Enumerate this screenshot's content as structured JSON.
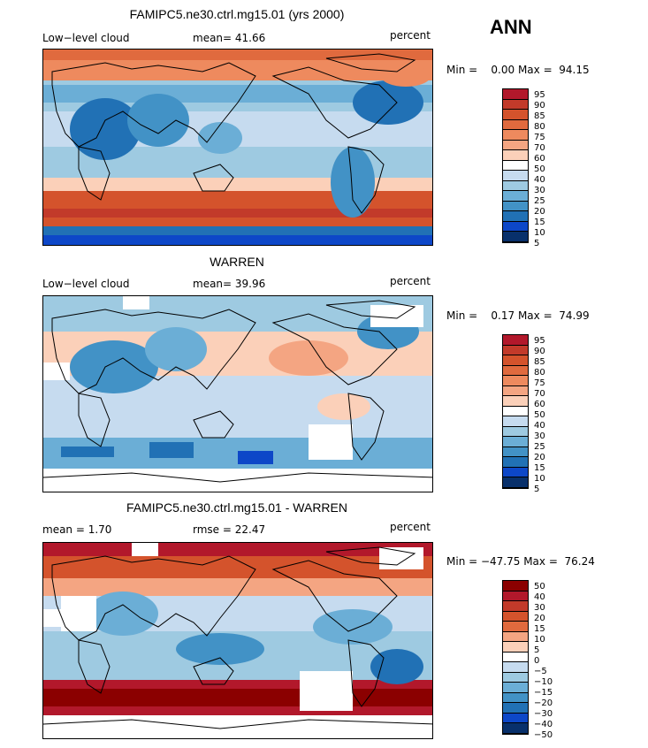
{
  "season": "ANN",
  "panels": [
    {
      "title": "FAMIPC5.ne30.ctrl.mg15.01 (yrs 2000)",
      "left_label": "Low−level cloud",
      "center_label": "mean=  41.66",
      "right_label": "percent",
      "minmax": "Min =    0.00 Max =  94.15",
      "colorbar_levels": [
        "95",
        "90",
        "85",
        "80",
        "75",
        "70",
        "60",
        "50",
        "40",
        "30",
        "25",
        "20",
        "15",
        "10",
        "5"
      ],
      "colors": [
        "#b2182b",
        "#c23a2a",
        "#d4532c",
        "#e06a3e",
        "#ee8a5e",
        "#f4a582",
        "#fbd0b9",
        "#ffffff",
        "#c6dbef",
        "#9ecae1",
        "#6baed6",
        "#4292c6",
        "#2171b5",
        "#0d47c8",
        "#08306b"
      ]
    },
    {
      "title": "WARREN",
      "left_label": "Low−level cloud",
      "center_label": "mean=  39.96",
      "right_label": "percent",
      "minmax": "Min =    0.17 Max =  74.99",
      "colorbar_levels": [
        "95",
        "90",
        "85",
        "80",
        "75",
        "70",
        "60",
        "50",
        "40",
        "30",
        "25",
        "20",
        "15",
        "10",
        "5"
      ],
      "colors": [
        "#b2182b",
        "#c23a2a",
        "#d4532c",
        "#e06a3e",
        "#ee8a5e",
        "#f4a582",
        "#fbd0b9",
        "#ffffff",
        "#c6dbef",
        "#9ecae1",
        "#6baed6",
        "#4292c6",
        "#2171b5",
        "#0d47c8",
        "#08306b"
      ]
    },
    {
      "title": "FAMIPC5.ne30.ctrl.mg15.01 - WARREN",
      "left_label": "mean =    1.70",
      "center_label": "rmse =  22.47",
      "right_label": "percent",
      "minmax": "Min = −47.75 Max =  76.24",
      "colorbar_levels": [
        "50",
        "40",
        "30",
        "20",
        "15",
        "10",
        "5",
        "0",
        "−5",
        "−10",
        "−15",
        "−20",
        "−30",
        "−40",
        "−50"
      ],
      "colors": [
        "#8b0000",
        "#b2182b",
        "#c23a2a",
        "#d4532c",
        "#e06a3e",
        "#f4a582",
        "#fbd0b9",
        "#ffffff",
        "#c6dbef",
        "#9ecae1",
        "#6baed6",
        "#4292c6",
        "#2171b5",
        "#0d47c8",
        "#08306b"
      ]
    }
  ]
}
